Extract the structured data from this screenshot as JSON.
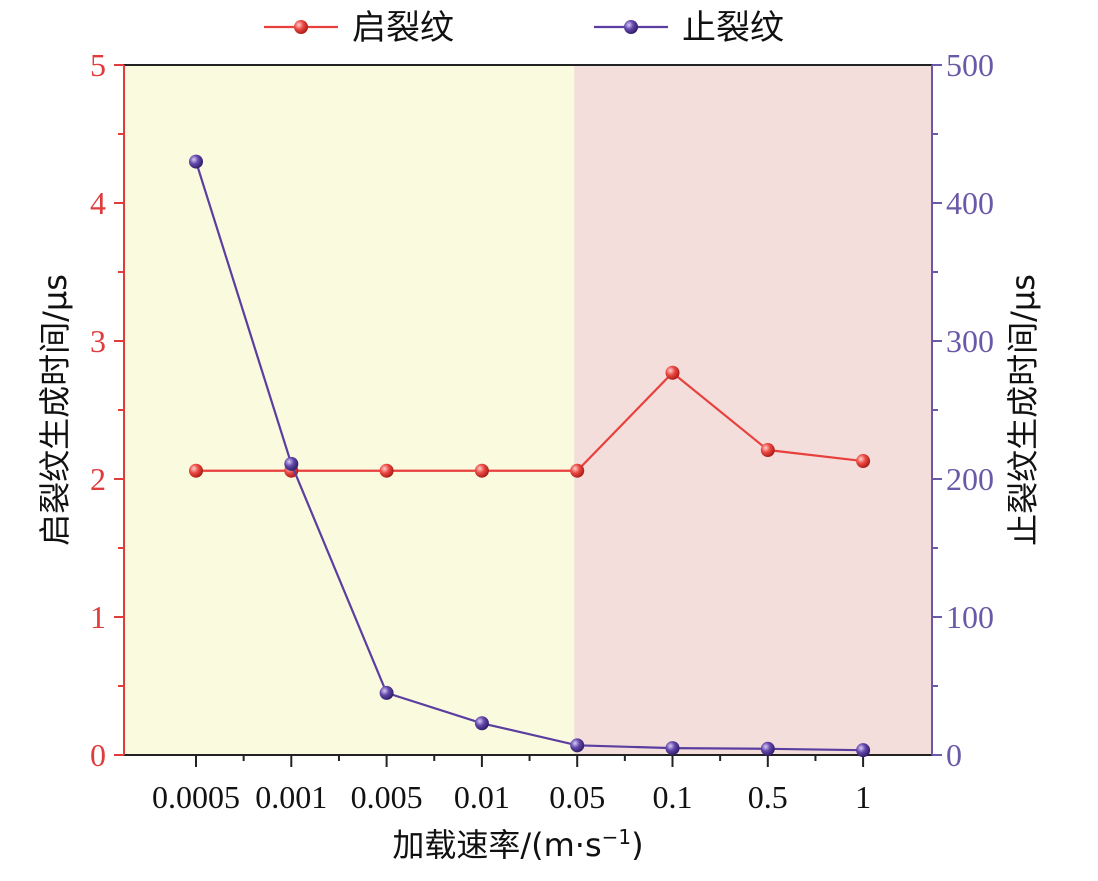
{
  "chart_data": {
    "type": "line",
    "categories": [
      "0.0005",
      "0.001",
      "0.005",
      "0.01",
      "0.05",
      "0.1",
      "0.5",
      "1"
    ],
    "xlabel_main": "加载速率/(m·s",
    "xlabel_exp": "−1",
    "xlabel_close": ")",
    "ylabel_left": "启裂纹生成时间/μs",
    "ylabel_right": "止裂纹生成时间/μs",
    "ylim_left": [
      0,
      5
    ],
    "yticks_left": [
      0,
      1,
      2,
      3,
      4,
      5
    ],
    "ylim_right": [
      0,
      500
    ],
    "yticks_right": [
      0,
      100,
      200,
      300,
      400,
      500
    ],
    "legend_position": "top-center",
    "grid": false,
    "regions": [
      {
        "from_category": 0,
        "to_category": 4,
        "color": "#fafade"
      },
      {
        "from_category": 4,
        "to_category": 7,
        "color": "#f4dedc"
      }
    ],
    "series": [
      {
        "name": "启裂纹",
        "axis": "left",
        "color": "#e8403c",
        "values": [
          2.06,
          2.06,
          2.06,
          2.06,
          2.06,
          2.77,
          2.21,
          2.13
        ]
      },
      {
        "name": "止裂纹",
        "axis": "right",
        "color": "#5a3ea0",
        "values": [
          430,
          211,
          45,
          23,
          7,
          5,
          4.5,
          3.5
        ]
      }
    ]
  }
}
